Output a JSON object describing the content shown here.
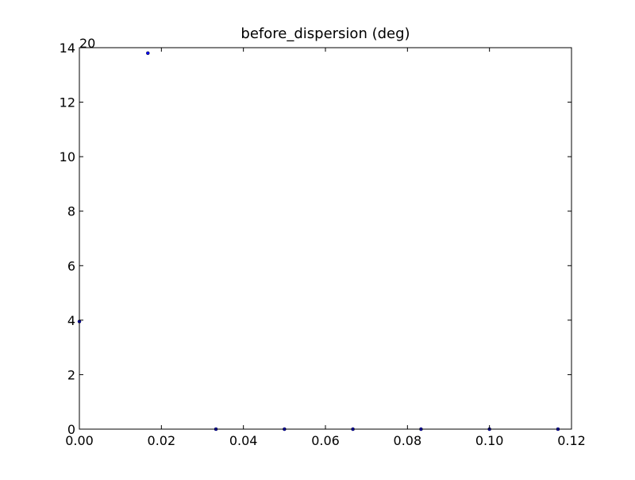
{
  "chart_data": {
    "type": "scatter",
    "title": "before_dispersion (deg)",
    "xlabel": "",
    "ylabel": "",
    "xlim": [
      0,
      0.12
    ],
    "ylim": [
      0,
      14
    ],
    "x_ticks": [
      "0.00",
      "0.02",
      "0.04",
      "0.06",
      "0.08",
      "0.10",
      "0.12"
    ],
    "y_ticks": [
      "0",
      "2",
      "4",
      "6",
      "8",
      "10",
      "12",
      "14"
    ],
    "offset_text": "20",
    "grid": false,
    "legend": "none",
    "marker_color": "#0000ff",
    "series": [
      {
        "x": [
          0.0,
          0.0167,
          0.0333,
          0.05,
          0.0667,
          0.0833,
          0.1,
          0.1167
        ],
        "y": [
          3.95,
          13.8,
          0,
          0,
          0,
          0,
          0,
          0
        ]
      }
    ]
  }
}
